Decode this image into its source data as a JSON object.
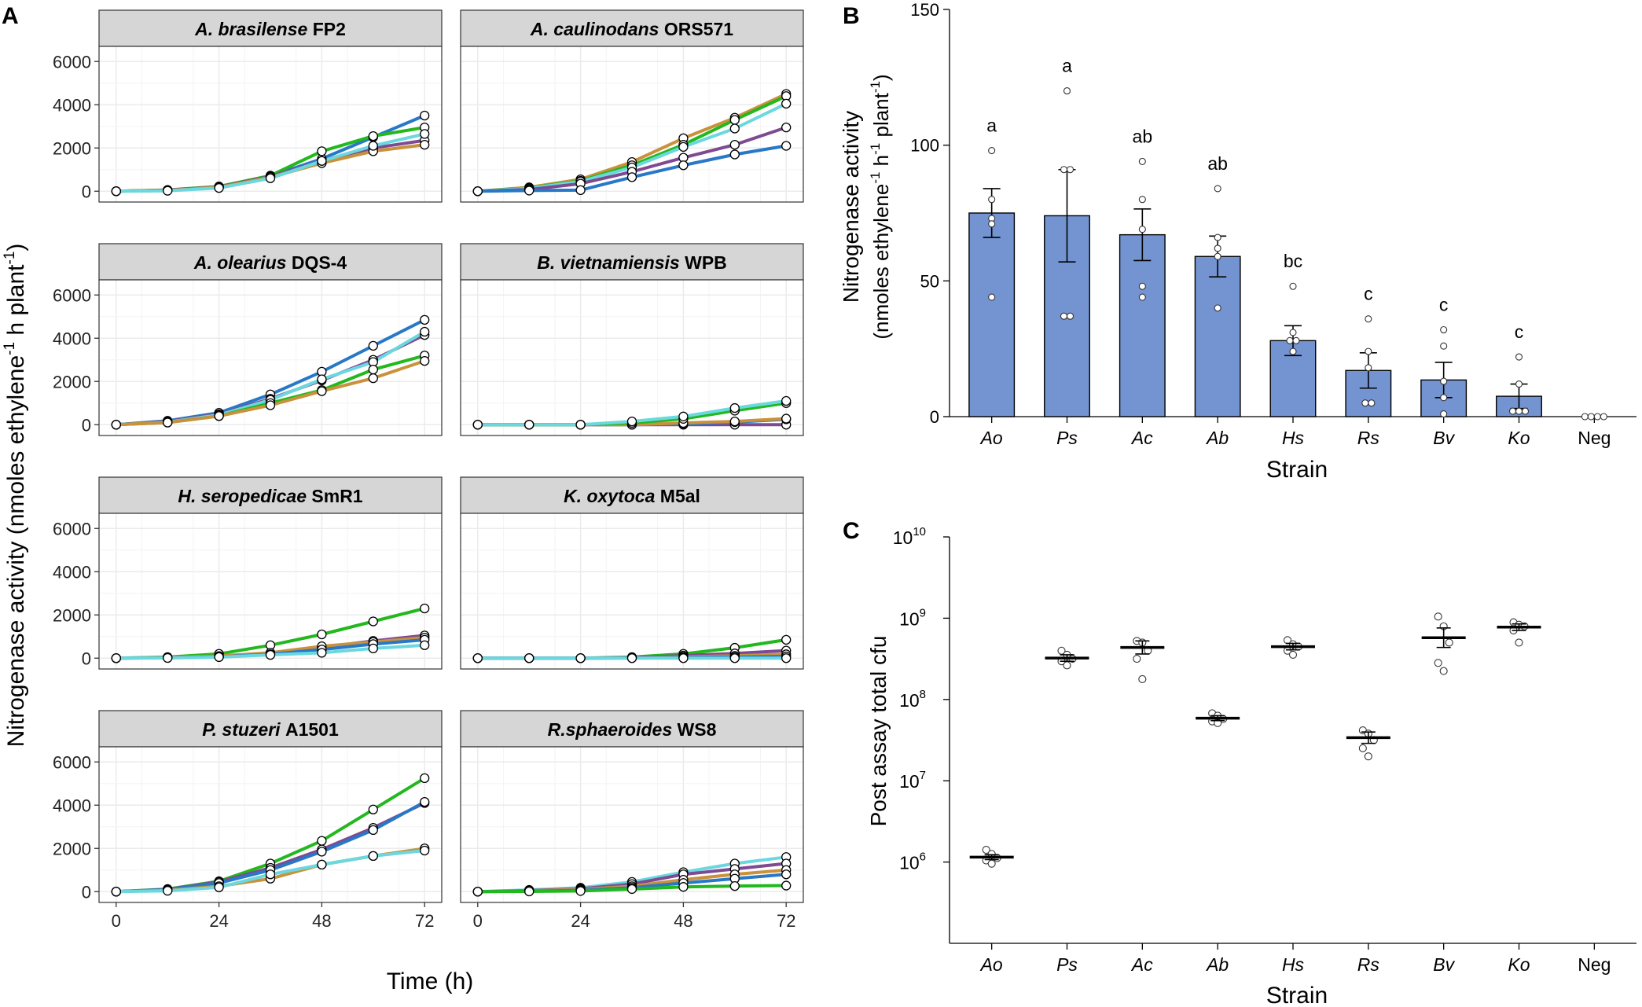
{
  "figure": {
    "panel_a_label": "A",
    "panel_b_label": "B",
    "panel_c_label": "C"
  },
  "colors": {
    "blue": "#2878c8",
    "green": "#22b81e",
    "orange": "#c8923c",
    "purple": "#7e4a92",
    "cyan": "#6ad8de",
    "bar_fill": "#7394d0",
    "strip_fill": "#d6d6d6",
    "grid": "#ebebeb"
  },
  "panel_a": {
    "ylabel": "Nitrogenase activity (nmoles ethylene",
    "ylabel_sup1": "-1",
    "ylabel_mid": " h",
    "ylabel_unit_tail": " plant",
    "ylabel_sup2": "-1",
    "ylabel_close": ")",
    "xlabel": "Time (h)",
    "x_ticks": [
      "0",
      "24",
      "48",
      "72"
    ],
    "y_ticks": [
      "0",
      "2000",
      "4000",
      "6000"
    ]
  },
  "chart_data": [
    {
      "type": "line",
      "panel": "A",
      "x": [
        0,
        12,
        24,
        36,
        48,
        60,
        72
      ],
      "xlim": [
        -4,
        76
      ],
      "ylim": [
        -500,
        6700
      ],
      "facets": [
        {
          "species": "A. brasilense",
          "strain": "FP2",
          "series": [
            {
              "name": "blue",
              "values": [
                0,
                50,
                200,
                700,
                1500,
                2500,
                3500
              ]
            },
            {
              "name": "green",
              "values": [
                0,
                60,
                220,
                720,
                1850,
                2550,
                2950
              ]
            },
            {
              "name": "purple",
              "values": [
                0,
                50,
                200,
                680,
                1400,
                2000,
                2350
              ]
            },
            {
              "name": "orange",
              "values": [
                0,
                40,
                180,
                650,
                1300,
                1850,
                2150
              ]
            },
            {
              "name": "cyan",
              "values": [
                0,
                20,
                150,
                600,
                1400,
                2100,
                2650
              ]
            }
          ]
        },
        {
          "species": "A. caulinodans",
          "strain": "ORS571",
          "series": [
            {
              "name": "orange",
              "values": [
                0,
                180,
                550,
                1350,
                2450,
                3400,
                4500
              ]
            },
            {
              "name": "green",
              "values": [
                0,
                150,
                480,
                1200,
                2150,
                3300,
                4400
              ]
            },
            {
              "name": "cyan",
              "values": [
                0,
                130,
                450,
                1100,
                2050,
                2900,
                4050
              ]
            },
            {
              "name": "purple",
              "values": [
                0,
                80,
                350,
                900,
                1550,
                2150,
                2950
              ]
            },
            {
              "name": "blue",
              "values": [
                0,
                30,
                50,
                650,
                1200,
                1700,
                2100
              ]
            }
          ]
        },
        {
          "species": "A. olearius",
          "strain": "DQS-4",
          "series": [
            {
              "name": "blue",
              "values": [
                0,
                180,
                550,
                1400,
                2450,
                3650,
                4850
              ]
            },
            {
              "name": "purple",
              "values": [
                0,
                150,
                480,
                1200,
                2050,
                3000,
                4150
              ]
            },
            {
              "name": "cyan",
              "values": [
                0,
                120,
                450,
                1150,
                2100,
                2900,
                4300
              ]
            },
            {
              "name": "green",
              "values": [
                0,
                100,
                400,
                1000,
                1600,
                2550,
                3200
              ]
            },
            {
              "name": "orange",
              "values": [
                0,
                100,
                400,
                900,
                1550,
                2150,
                2950
              ]
            }
          ]
        },
        {
          "species": "B. vietnamiensis",
          "strain": "WPB",
          "series": [
            {
              "name": "purple",
              "values": [
                0,
                0,
                0,
                0,
                0,
                0,
                0
              ]
            },
            {
              "name": "blue",
              "values": [
                0,
                0,
                0,
                0,
                30,
                120,
                250
              ]
            },
            {
              "name": "orange",
              "values": [
                0,
                0,
                0,
                0,
                80,
                150,
                280
              ]
            },
            {
              "name": "green",
              "values": [
                0,
                0,
                0,
                80,
                270,
                650,
                1000
              ]
            },
            {
              "name": "cyan",
              "values": [
                0,
                0,
                0,
                150,
                380,
                770,
                1100
              ]
            }
          ]
        },
        {
          "species": "H. seropedicae",
          "strain": "SmR1",
          "series": [
            {
              "name": "green",
              "values": [
                0,
                50,
                200,
                600,
                1100,
                1700,
                2300
              ]
            },
            {
              "name": "purple",
              "values": [
                0,
                20,
                80,
                200,
                500,
                800,
                1050
              ]
            },
            {
              "name": "orange",
              "values": [
                0,
                30,
                100,
                250,
                550,
                750,
                950
              ]
            },
            {
              "name": "blue",
              "values": [
                0,
                20,
                60,
                180,
                400,
                650,
                850
              ]
            },
            {
              "name": "cyan",
              "values": [
                0,
                10,
                50,
                150,
                250,
                450,
                600
              ]
            }
          ]
        },
        {
          "species": "K. oxytoca",
          "strain": "M5al",
          "series": [
            {
              "name": "green",
              "values": [
                0,
                0,
                0,
                50,
                200,
                480,
                850
              ]
            },
            {
              "name": "purple",
              "values": [
                0,
                0,
                0,
                30,
                120,
                220,
                350
              ]
            },
            {
              "name": "orange",
              "values": [
                0,
                0,
                0,
                20,
                60,
                110,
                180
              ]
            },
            {
              "name": "blue",
              "values": [
                0,
                0,
                0,
                10,
                30,
                50,
                80
              ]
            },
            {
              "name": "cyan",
              "values": [
                0,
                0,
                0,
                0,
                0,
                0,
                0
              ]
            }
          ]
        },
        {
          "species": "P. stuzeri",
          "strain": "A1501",
          "series": [
            {
              "name": "green",
              "values": [
                0,
                120,
                480,
                1300,
                2350,
                3800,
                5250
              ]
            },
            {
              "name": "purple",
              "values": [
                0,
                100,
                450,
                1100,
                1950,
                2950,
                4100
              ]
            },
            {
              "name": "blue",
              "values": [
                0,
                90,
                400,
                1000,
                1850,
                2850,
                4150
              ]
            },
            {
              "name": "orange",
              "values": [
                0,
                60,
                250,
                600,
                1250,
                1650,
                2000
              ]
            },
            {
              "name": "cyan",
              "values": [
                0,
                40,
                200,
                800,
                1250,
                1650,
                1900
              ]
            }
          ]
        },
        {
          "species": "R.sphaeroides",
          "strain": "WS8",
          "series": [
            {
              "name": "cyan",
              "values": [
                0,
                80,
                180,
                450,
                900,
                1300,
                1600
              ]
            },
            {
              "name": "purple",
              "values": [
                0,
                50,
                130,
                350,
                800,
                1050,
                1300
              ]
            },
            {
              "name": "orange",
              "values": [
                0,
                40,
                100,
                250,
                550,
                800,
                1000
              ]
            },
            {
              "name": "blue",
              "values": [
                0,
                20,
                60,
                180,
                400,
                600,
                800
              ]
            },
            {
              "name": "green",
              "values": [
                0,
                10,
                30,
                120,
                220,
                260,
                280
              ]
            }
          ]
        }
      ]
    },
    {
      "type": "bar",
      "panel": "B",
      "categories": [
        "Ao",
        "Ps",
        "Ac",
        "Ab",
        "Hs",
        "Rs",
        "Bv",
        "Ko",
        "Neg"
      ],
      "italic_categories": [
        true,
        true,
        true,
        true,
        true,
        true,
        true,
        true,
        false
      ],
      "values": [
        75,
        74,
        67,
        59,
        28,
        17,
        13.5,
        7.5,
        0
      ],
      "errors": [
        9,
        17,
        9.5,
        7.5,
        5.5,
        6.5,
        6.5,
        4.5,
        0
      ],
      "points": [
        [
          98,
          80,
          73,
          71,
          44
        ],
        [
          120,
          91,
          91,
          37,
          37
        ],
        [
          94,
          80,
          69,
          48,
          44
        ],
        [
          84,
          66,
          62,
          59,
          40
        ],
        [
          48,
          31,
          28,
          28,
          24
        ],
        [
          36,
          24,
          18,
          5,
          5
        ],
        [
          32,
          26,
          13,
          7,
          1
        ],
        [
          22,
          12,
          2,
          2,
          2
        ],
        [
          0,
          0,
          0,
          0
        ]
      ],
      "letters": [
        "a",
        "a",
        "ab",
        "ab",
        "bc",
        "c",
        "c",
        "c",
        ""
      ],
      "ylim": [
        0,
        150
      ],
      "yticks": [
        "0",
        "50",
        "100",
        "150"
      ],
      "title": "",
      "xlabel": "Strain",
      "ylabel_line1": "Nitrogenase activity",
      "ylabel_line2_a": "(nmoles ethylene",
      "ylabel_line2_sup1": "-1",
      "ylabel_line2_b": " h",
      "ylabel_line2_sup2": "-1",
      "ylabel_line2_c": " plant",
      "ylabel_line2_sup3": "-1",
      "ylabel_line2_d": ")"
    },
    {
      "type": "scatter",
      "panel": "C",
      "scale": "log10",
      "categories": [
        "Ao",
        "Ps",
        "Ac",
        "Ab",
        "Hs",
        "Rs",
        "Bv",
        "Ko",
        "Neg"
      ],
      "italic_categories": [
        true,
        true,
        true,
        true,
        true,
        true,
        true,
        true,
        false
      ],
      "means": [
        6.06,
        8.51,
        8.64,
        7.77,
        8.65,
        7.53,
        8.76,
        8.89,
        null
      ],
      "errors": [
        0.03,
        0.04,
        0.08,
        0.03,
        0.04,
        0.07,
        0.12,
        0.04,
        null
      ],
      "points": [
        [
          6.15,
          6.1,
          6.05,
          6.02,
          5.98
        ],
        [
          8.6,
          8.55,
          8.5,
          8.47,
          8.42
        ],
        [
          8.72,
          8.7,
          8.6,
          8.5,
          8.25
        ],
        [
          7.83,
          7.8,
          7.76,
          7.73,
          7.71
        ],
        [
          8.73,
          8.68,
          8.65,
          8.6,
          8.55
        ],
        [
          7.62,
          7.58,
          7.5,
          7.4,
          7.3
        ],
        [
          9.02,
          8.9,
          8.7,
          8.45,
          8.35
        ],
        [
          8.95,
          8.92,
          8.9,
          8.85,
          8.7
        ],
        []
      ],
      "ylim": [
        5,
        10
      ],
      "ytick_base": "10",
      "ytick_exponents": [
        "6",
        "7",
        "8",
        "9",
        "10"
      ],
      "title": "",
      "xlabel": "Strain",
      "ylabel": "Post assay total cfu"
    }
  ]
}
